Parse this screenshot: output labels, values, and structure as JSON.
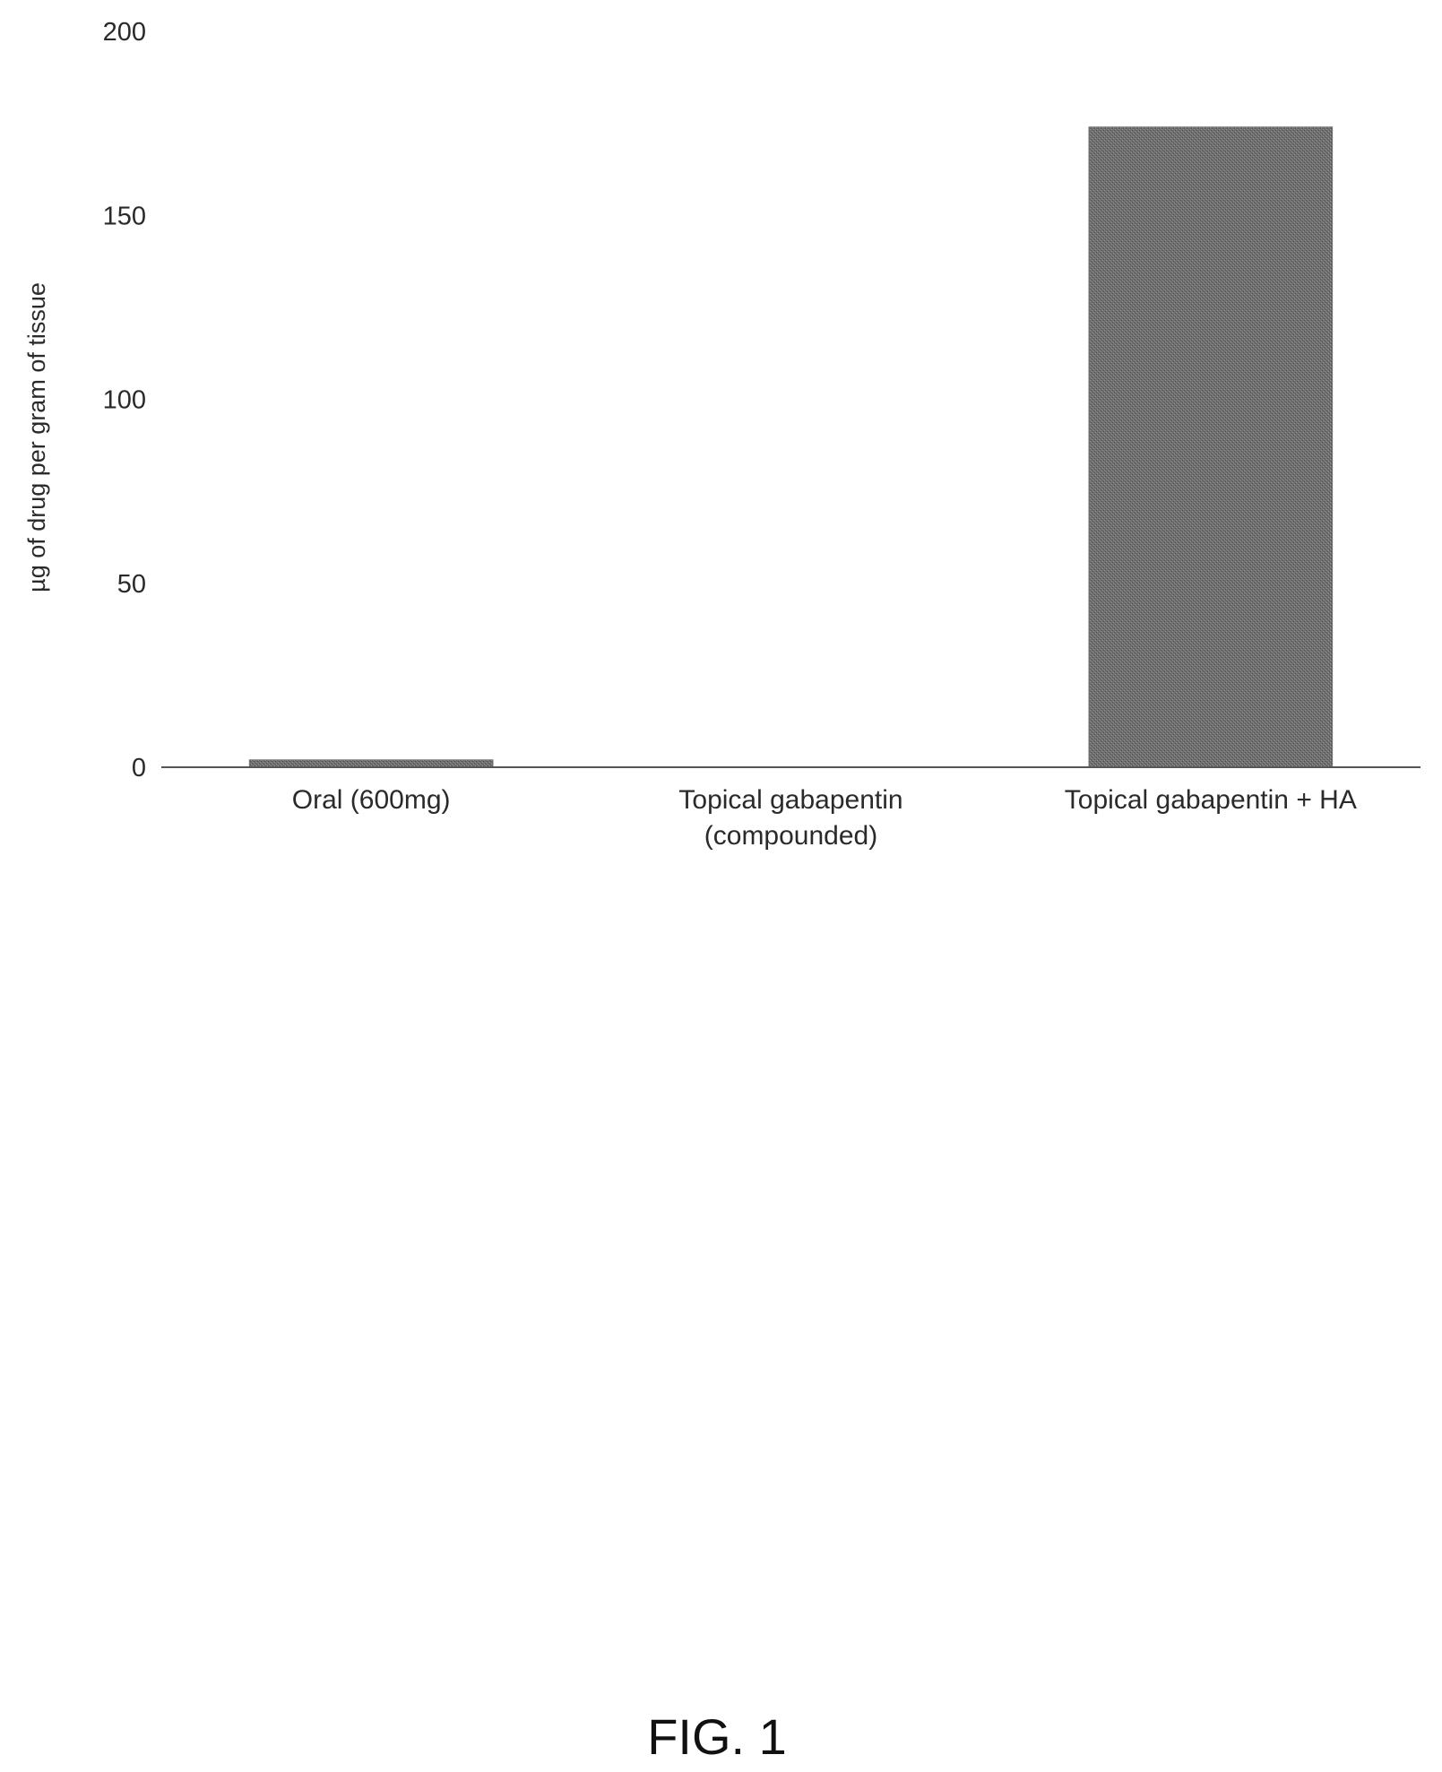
{
  "chart_data": {
    "type": "bar",
    "categories": [
      [
        "Oral (600mg)"
      ],
      [
        "Topical gabapentin",
        "(compounded)"
      ],
      [
        "Topical gabapentin + HA"
      ]
    ],
    "values": [
      2,
      0,
      174
    ],
    "xlabel": "",
    "ylabel": "µg of drug per gram of tissue",
    "ylim": [
      0,
      200
    ],
    "yticks": [
      "0",
      "50",
      "100",
      "150",
      "200"
    ],
    "grid": false,
    "legend": "none",
    "bar_color": "#6f6f6f"
  },
  "caption": "FIG. 1"
}
